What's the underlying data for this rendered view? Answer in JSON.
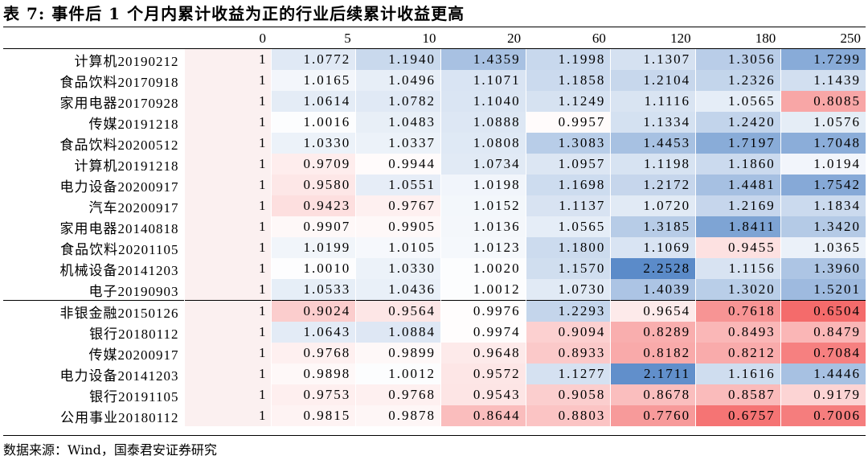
{
  "title": "表 7:  事件后 1 个月内累计收益为正的行业后续累计收益更高",
  "source": "数据来源：Wind，国泰君安证券研究",
  "columns": [
    "",
    "0",
    "5",
    "10",
    "20",
    "60",
    "120",
    "180",
    "250"
  ],
  "rows": [
    {
      "label": "计算机20190212",
      "values": [
        "1",
        "1.0772",
        "1.1940",
        "1.4359",
        "1.1998",
        "1.1307",
        "1.3056",
        "1.7299"
      ]
    },
    {
      "label": "食品饮料20170918",
      "values": [
        "1",
        "1.0165",
        "1.0496",
        "1.1071",
        "1.1858",
        "1.2104",
        "1.2326",
        "1.1439"
      ]
    },
    {
      "label": "家用电器20170928",
      "values": [
        "1",
        "1.0614",
        "1.0782",
        "1.1040",
        "1.1249",
        "1.1116",
        "1.0565",
        "0.8085"
      ]
    },
    {
      "label": "传媒20191218",
      "values": [
        "1",
        "1.0016",
        "1.0483",
        "1.0888",
        "0.9957",
        "1.1334",
        "1.2420",
        "1.0576"
      ]
    },
    {
      "label": "食品饮料20200512",
      "values": [
        "1",
        "1.0330",
        "1.0337",
        "1.0808",
        "1.3083",
        "1.4453",
        "1.7197",
        "1.7048"
      ]
    },
    {
      "label": "计算机20191218",
      "values": [
        "1",
        "0.9709",
        "0.9944",
        "1.0734",
        "1.0957",
        "1.1198",
        "1.1860",
        "1.0194"
      ]
    },
    {
      "label": "电力设备20200917",
      "values": [
        "1",
        "0.9580",
        "1.0551",
        "1.0198",
        "1.1698",
        "1.2172",
        "1.4481",
        "1.7542"
      ]
    },
    {
      "label": "汽车20200917",
      "values": [
        "1",
        "0.9423",
        "0.9767",
        "1.0152",
        "1.1137",
        "1.0720",
        "1.2169",
        "1.1834"
      ]
    },
    {
      "label": "家用电器20140818",
      "values": [
        "1",
        "0.9907",
        "0.9905",
        "1.0136",
        "1.0565",
        "1.3185",
        "1.8411",
        "1.3420"
      ]
    },
    {
      "label": "食品饮料20201105",
      "values": [
        "1",
        "1.0199",
        "1.0105",
        "1.0123",
        "1.1800",
        "1.1069",
        "0.9455",
        "1.0365"
      ]
    },
    {
      "label": "机械设备20141203",
      "values": [
        "1",
        "1.0010",
        "1.0330",
        "1.0020",
        "1.1570",
        "2.2528",
        "1.1156",
        "1.3960"
      ]
    },
    {
      "label": "电子20190903",
      "values": [
        "1",
        "1.0533",
        "1.0436",
        "1.0012",
        "1.0730",
        "1.4039",
        "1.3020",
        "1.5201"
      ]
    },
    {
      "label": "非银金融20150126",
      "values": [
        "1",
        "0.9024",
        "0.9564",
        "0.9976",
        "1.2293",
        "0.9654",
        "0.7618",
        "0.6504"
      ]
    },
    {
      "label": "银行20180112",
      "values": [
        "1",
        "1.0643",
        "1.0884",
        "0.9974",
        "0.9094",
        "0.8289",
        "0.8493",
        "0.8479"
      ]
    },
    {
      "label": "传媒20200917",
      "values": [
        "1",
        "0.9768",
        "0.9899",
        "0.9648",
        "0.8933",
        "0.8182",
        "0.8212",
        "0.7084"
      ]
    },
    {
      "label": "电力设备20141203",
      "values": [
        "1",
        "0.9898",
        "1.0012",
        "0.9572",
        "1.1277",
        "2.1711",
        "1.1616",
        "1.4446"
      ]
    },
    {
      "label": "银行20191105",
      "values": [
        "1",
        "0.9753",
        "0.9768",
        "0.9543",
        "0.9058",
        "0.8678",
        "0.8587",
        "0.9179"
      ]
    },
    {
      "label": "公用事业20180112",
      "values": [
        "1",
        "0.9815",
        "0.9878",
        "0.8644",
        "0.8803",
        "0.7760",
        "0.6757",
        "0.7006"
      ]
    }
  ],
  "group_split_index": 12,
  "colors": {
    "baseline": "#fbf0f0",
    "positive_max": "#5b8bc9",
    "negative_max": "#f46b6b",
    "neutral": "#ffffff"
  }
}
